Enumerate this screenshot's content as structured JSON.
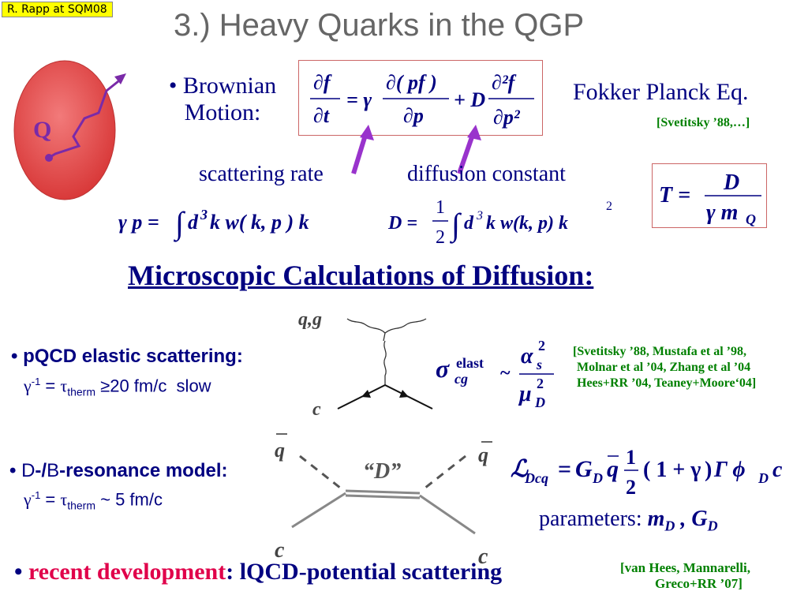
{
  "header": {
    "author_tag": "R. Rapp at SQM08",
    "title": "3.) Heavy Quarks in the QGP"
  },
  "brownian": {
    "bullet_line1": "• Brownian",
    "bullet_line2": "Motion:",
    "quark_label": "Q",
    "fokker_label": "Fokker Planck Eq.",
    "fokker_ref": "[Svetitsky ’88,…]",
    "scattering_rate": "scattering rate",
    "diffusion_constant": "diffusion constant"
  },
  "section_heading": "Microscopic Calculations of Diffusion:",
  "pqcd": {
    "bullet": "• ",
    "label": "pQCD elastic scattering:",
    "formula": "γ⁻¹ = τ_therm ≥20 fm/c  slow",
    "diagram_top_label": "q,g",
    "diagram_bottom_label": "c",
    "refs": [
      "[Svetitsky ’88, Mustafa et al ’98,",
      "Molnar et al ’04, Zhang et al ’04",
      "Hees+RR ’04, Teaney+Moore‘04]"
    ]
  },
  "resonance": {
    "bullet": "• ",
    "label_d": "D",
    "label_sep": "-/",
    "label_b": "B",
    "label_rest": "-resonance model:",
    "formula": "γ⁻¹ = τ_therm ~ 5 fm/c",
    "d_label": "“D”",
    "qbar": "q",
    "c": "c",
    "parameters_text": "parameters: "
  },
  "recent": {
    "bullet": "• ",
    "red": "recent development",
    "rest": ": lQCD-potential scattering",
    "refs": [
      "[van Hees, Mannarelli,",
      "Greco+RR  ’07]"
    ]
  },
  "colors": {
    "navy": "#000080",
    "green": "#008000",
    "red": "#e0004a",
    "purple": "#9933cc",
    "sphere": "#e84a4a"
  }
}
